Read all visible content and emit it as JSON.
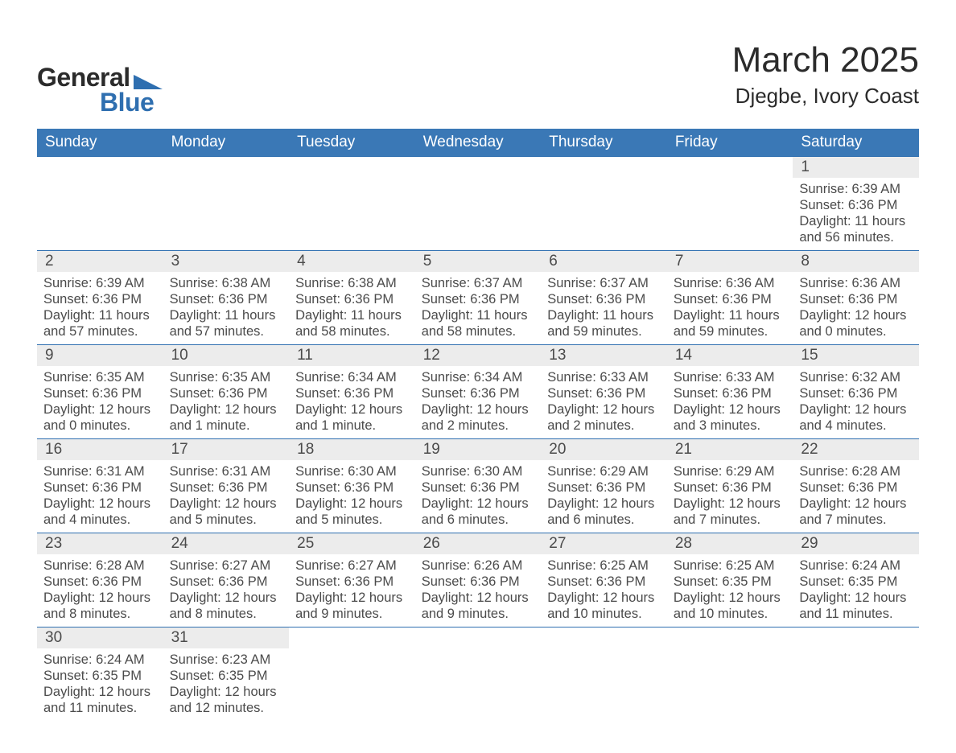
{
  "logo": {
    "text1": "General",
    "text2": "Blue",
    "triangle_color": "#2f6fb0"
  },
  "title": "March 2025",
  "subtitle": "Djegbe, Ivory Coast",
  "colors": {
    "header_bg": "#3a78b6",
    "header_text": "#ffffff",
    "daynum_bg": "#ececec",
    "text": "#4b4b4b",
    "row_border": "#2f6fb0",
    "page_bg": "#ffffff"
  },
  "fonts": {
    "title_size_pt": 33,
    "subtitle_size_pt": 20,
    "header_size_pt": 14,
    "daynum_size_pt": 14,
    "body_size_pt": 12
  },
  "weekdays": [
    "Sunday",
    "Monday",
    "Tuesday",
    "Wednesday",
    "Thursday",
    "Friday",
    "Saturday"
  ],
  "month_start_weekday_index": 6,
  "days": {
    "1": {
      "sunrise": "6:39 AM",
      "sunset": "6:36 PM",
      "daylight": "11 hours and 56 minutes."
    },
    "2": {
      "sunrise": "6:39 AM",
      "sunset": "6:36 PM",
      "daylight": "11 hours and 57 minutes."
    },
    "3": {
      "sunrise": "6:38 AM",
      "sunset": "6:36 PM",
      "daylight": "11 hours and 57 minutes."
    },
    "4": {
      "sunrise": "6:38 AM",
      "sunset": "6:36 PM",
      "daylight": "11 hours and 58 minutes."
    },
    "5": {
      "sunrise": "6:37 AM",
      "sunset": "6:36 PM",
      "daylight": "11 hours and 58 minutes."
    },
    "6": {
      "sunrise": "6:37 AM",
      "sunset": "6:36 PM",
      "daylight": "11 hours and 59 minutes."
    },
    "7": {
      "sunrise": "6:36 AM",
      "sunset": "6:36 PM",
      "daylight": "11 hours and 59 minutes."
    },
    "8": {
      "sunrise": "6:36 AM",
      "sunset": "6:36 PM",
      "daylight": "12 hours and 0 minutes."
    },
    "9": {
      "sunrise": "6:35 AM",
      "sunset": "6:36 PM",
      "daylight": "12 hours and 0 minutes."
    },
    "10": {
      "sunrise": "6:35 AM",
      "sunset": "6:36 PM",
      "daylight": "12 hours and 1 minute."
    },
    "11": {
      "sunrise": "6:34 AM",
      "sunset": "6:36 PM",
      "daylight": "12 hours and 1 minute."
    },
    "12": {
      "sunrise": "6:34 AM",
      "sunset": "6:36 PM",
      "daylight": "12 hours and 2 minutes."
    },
    "13": {
      "sunrise": "6:33 AM",
      "sunset": "6:36 PM",
      "daylight": "12 hours and 2 minutes."
    },
    "14": {
      "sunrise": "6:33 AM",
      "sunset": "6:36 PM",
      "daylight": "12 hours and 3 minutes."
    },
    "15": {
      "sunrise": "6:32 AM",
      "sunset": "6:36 PM",
      "daylight": "12 hours and 4 minutes."
    },
    "16": {
      "sunrise": "6:31 AM",
      "sunset": "6:36 PM",
      "daylight": "12 hours and 4 minutes."
    },
    "17": {
      "sunrise": "6:31 AM",
      "sunset": "6:36 PM",
      "daylight": "12 hours and 5 minutes."
    },
    "18": {
      "sunrise": "6:30 AM",
      "sunset": "6:36 PM",
      "daylight": "12 hours and 5 minutes."
    },
    "19": {
      "sunrise": "6:30 AM",
      "sunset": "6:36 PM",
      "daylight": "12 hours and 6 minutes."
    },
    "20": {
      "sunrise": "6:29 AM",
      "sunset": "6:36 PM",
      "daylight": "12 hours and 6 minutes."
    },
    "21": {
      "sunrise": "6:29 AM",
      "sunset": "6:36 PM",
      "daylight": "12 hours and 7 minutes."
    },
    "22": {
      "sunrise": "6:28 AM",
      "sunset": "6:36 PM",
      "daylight": "12 hours and 7 minutes."
    },
    "23": {
      "sunrise": "6:28 AM",
      "sunset": "6:36 PM",
      "daylight": "12 hours and 8 minutes."
    },
    "24": {
      "sunrise": "6:27 AM",
      "sunset": "6:36 PM",
      "daylight": "12 hours and 8 minutes."
    },
    "25": {
      "sunrise": "6:27 AM",
      "sunset": "6:36 PM",
      "daylight": "12 hours and 9 minutes."
    },
    "26": {
      "sunrise": "6:26 AM",
      "sunset": "6:36 PM",
      "daylight": "12 hours and 9 minutes."
    },
    "27": {
      "sunrise": "6:25 AM",
      "sunset": "6:36 PM",
      "daylight": "12 hours and 10 minutes."
    },
    "28": {
      "sunrise": "6:25 AM",
      "sunset": "6:35 PM",
      "daylight": "12 hours and 10 minutes."
    },
    "29": {
      "sunrise": "6:24 AM",
      "sunset": "6:35 PM",
      "daylight": "12 hours and 11 minutes."
    },
    "30": {
      "sunrise": "6:24 AM",
      "sunset": "6:35 PM",
      "daylight": "12 hours and 11 minutes."
    },
    "31": {
      "sunrise": "6:23 AM",
      "sunset": "6:35 PM",
      "daylight": "12 hours and 12 minutes."
    }
  },
  "labels": {
    "sunrise": "Sunrise:",
    "sunset": "Sunset:",
    "daylight": "Daylight:"
  }
}
